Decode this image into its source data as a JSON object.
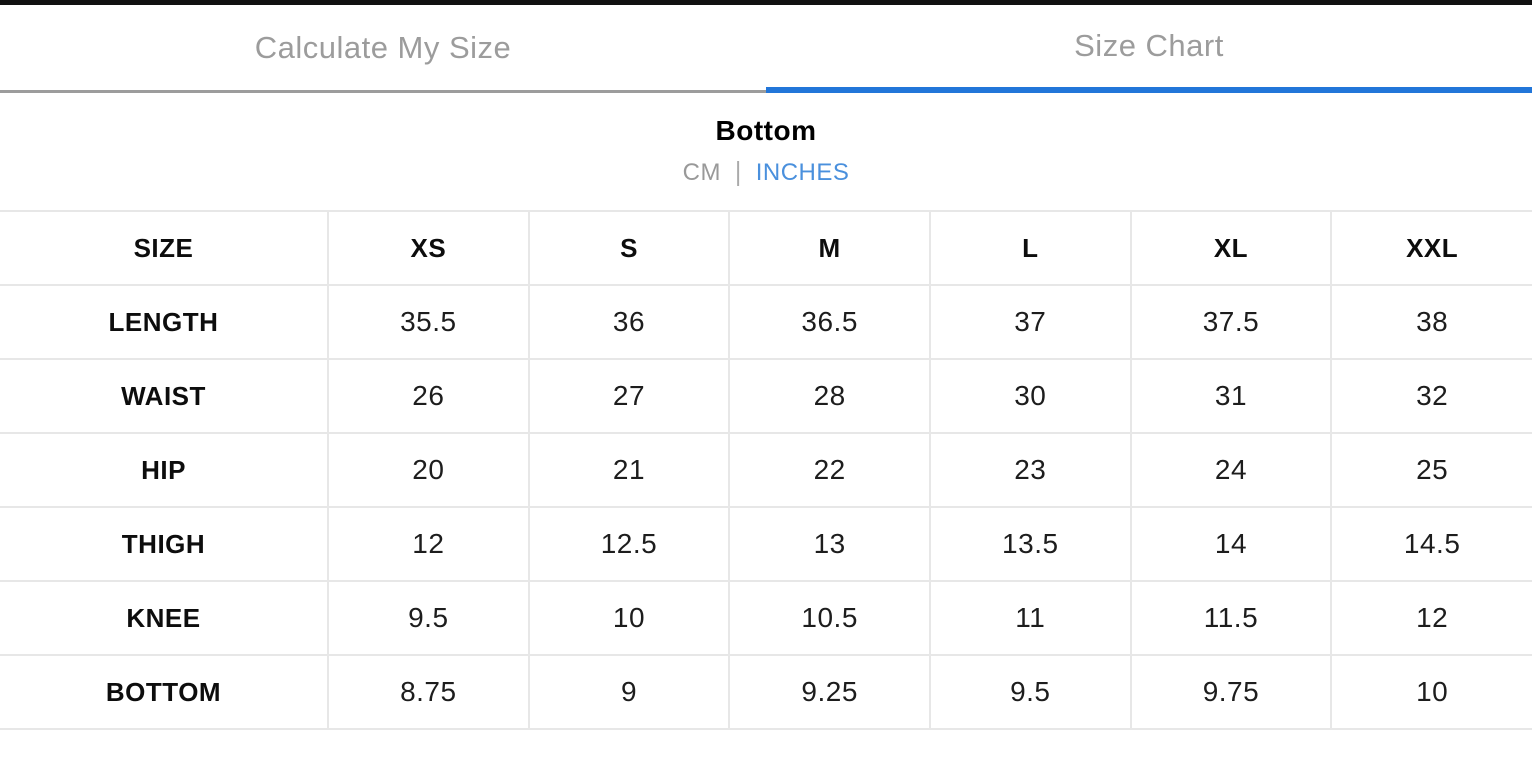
{
  "tabs": {
    "calculate_my_size": {
      "label": "Calculate My Size",
      "active": false
    },
    "size_chart": {
      "label": "Size Chart",
      "active": true
    }
  },
  "section": {
    "title": "Bottom",
    "unit_toggle": {
      "cm_label": "CM",
      "separator": "|",
      "inches_label": "INCHES",
      "selected": "INCHES"
    }
  },
  "size_table": {
    "header": [
      "SIZE",
      "XS",
      "S",
      "M",
      "L",
      "XL",
      "XXL"
    ],
    "rows": [
      {
        "label": "LENGTH",
        "values": [
          "35.5",
          "36",
          "36.5",
          "37",
          "37.5",
          "38"
        ]
      },
      {
        "label": "WAIST",
        "values": [
          "26",
          "27",
          "28",
          "30",
          "31",
          "32"
        ]
      },
      {
        "label": "HIP",
        "values": [
          "20",
          "21",
          "22",
          "23",
          "24",
          "25"
        ]
      },
      {
        "label": "THIGH",
        "values": [
          "12",
          "12.5",
          "13",
          "13.5",
          "14",
          "14.5"
        ]
      },
      {
        "label": "KNEE",
        "values": [
          "9.5",
          "10",
          "10.5",
          "11",
          "11.5",
          "12"
        ]
      },
      {
        "label": "BOTTOM",
        "values": [
          "8.75",
          "9",
          "9.25",
          "9.5",
          "9.75",
          "10"
        ]
      }
    ]
  },
  "colors": {
    "active_tab_indicator": "#2276d9",
    "inactive_tab_underline": "#9c9c9c",
    "inactive_tab_text": "#9c9c9c",
    "selected_unit_text": "#4a90dd",
    "unselected_unit_text": "#999999",
    "table_border": "#e7e7e7",
    "top_border": "#111111"
  }
}
